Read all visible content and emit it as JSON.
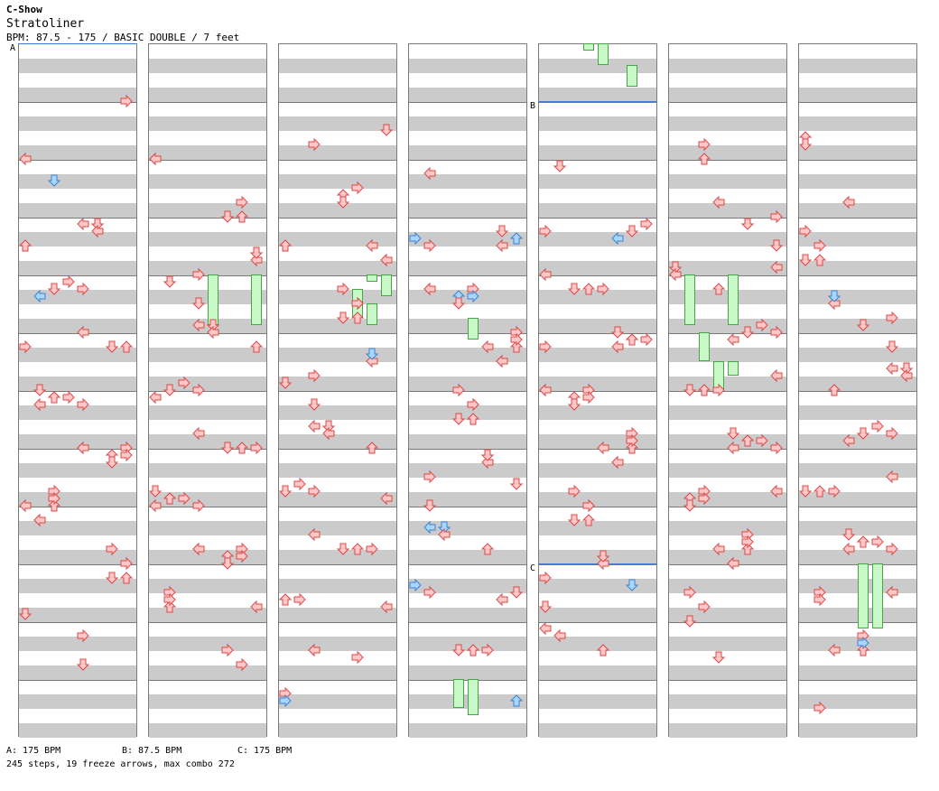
{
  "header": {
    "mode": "C-Show",
    "song": "Stratoliner",
    "info": "BPM: 87.5 - 175 / BASIC DOUBLE / 7 feet"
  },
  "colors": {
    "note_fill": "#ffc7c7",
    "note_stroke": "#d84a4a",
    "note_alt_fill": "#a8d6ff",
    "note_alt_stroke": "#3f82d1",
    "freeze_fill": "#c8f7c8",
    "freeze_stroke": "#4aa24a",
    "band": "#cbcbcb",
    "marker": "#3d7bd9"
  },
  "bpm_markers": [
    {
      "label": "A",
      "column": 1,
      "beat": 0
    },
    {
      "label": "B",
      "column": 5,
      "beat": 8
    },
    {
      "label": "C",
      "column": 5,
      "beat": 72
    }
  ],
  "legend": {
    "a": "A: 175 BPM",
    "b": "B: 87.5 BPM",
    "c": "C: 175 BPM"
  },
  "summary": "245 steps, 19 freeze arrows, max combo 272",
  "chart": {
    "columns": 7,
    "measures_per_column": 12,
    "notes": [
      [
        4,
        "r"
      ],
      [
        5,
        "l"
      ],
      [
        6.5,
        "d"
      ],
      [
        7.5,
        "r"
      ],
      [
        8,
        "l"
      ],
      [
        9.5,
        "u"
      ],
      [
        10,
        "r"
      ],
      [
        11,
        "u"
      ],
      [
        11,
        "r"
      ],
      [
        12.5,
        "d"
      ],
      [
        13,
        "d"
      ],
      [
        13,
        "u"
      ],
      [
        13.5,
        "l"
      ],
      [
        14,
        "r"
      ],
      [
        14.5,
        "u"
      ],
      [
        15,
        "l"
      ],
      [
        15,
        "r"
      ],
      [
        5,
        "d"
      ],
      [
        6.5,
        "u"
      ],
      [
        8,
        "l"
      ],
      [
        9,
        "d"
      ],
      [
        10,
        "r"
      ],
      [
        10.5,
        "l"
      ],
      [
        12,
        "d"
      ],
      [
        13,
        "u"
      ],
      [
        13.5,
        "r"
      ],
      [
        14,
        "l"
      ],
      [
        14.5,
        "r"
      ],
      [
        5,
        "r"
      ],
      [
        6,
        "d"
      ],
      [
        7,
        "l"
      ],
      [
        8,
        "u"
      ],
      [
        9.5,
        "d"
      ],
      [
        10,
        "l"
      ],
      [
        11,
        "r"
      ],
      [
        12,
        "d"
      ],
      [
        13,
        "l"
      ],
      [
        13.5,
        "r"
      ],
      [
        14,
        "l"
      ],
      [
        15,
        "r"
      ]
    ],
    "freezes": [
      {
        "column": 2,
        "lane": 4,
        "beat": 16,
        "end": 19.5
      },
      {
        "column": 2,
        "lane": 7,
        "beat": 16,
        "end": 19.5
      },
      {
        "column": 3,
        "lane": 5,
        "beat": 17,
        "end": 19
      },
      {
        "column": 3,
        "lane": 6,
        "beat": 18,
        "end": 19.5
      },
      {
        "column": 3,
        "lane": 7,
        "beat": 16,
        "end": 17.5
      },
      {
        "column": 4,
        "lane": 4,
        "beat": 19,
        "end": 20.5
      },
      {
        "column": 4,
        "lane": 3,
        "beat": 44,
        "end": 46
      },
      {
        "column": 4,
        "lane": 4,
        "beat": 44,
        "end": 46.5
      },
      {
        "column": 5,
        "lane": 3,
        "beat": 0,
        "end": 0.5
      },
      {
        "column": 5,
        "lane": 4,
        "beat": 0,
        "end": 1.5
      },
      {
        "column": 5,
        "lane": 6,
        "beat": 1.5,
        "end": 3
      },
      {
        "column": 6,
        "lane": 1,
        "beat": 16,
        "end": 19.5
      },
      {
        "column": 6,
        "lane": 4,
        "beat": 16,
        "end": 19.5
      },
      {
        "column": 6,
        "lane": 2,
        "beat": 20,
        "end": 22
      },
      {
        "column": 6,
        "lane": 3,
        "beat": 22,
        "end": 24
      },
      {
        "column": 7,
        "lane": 4,
        "beat": 36,
        "end": 40.5
      },
      {
        "column": 7,
        "lane": 5,
        "beat": 36,
        "end": 40.5
      },
      {
        "column": 6,
        "lane": 4,
        "beat": 22,
        "end": 23
      },
      {
        "column": 3,
        "lane": 6,
        "beat": 16,
        "end": 16.5
      }
    ]
  }
}
